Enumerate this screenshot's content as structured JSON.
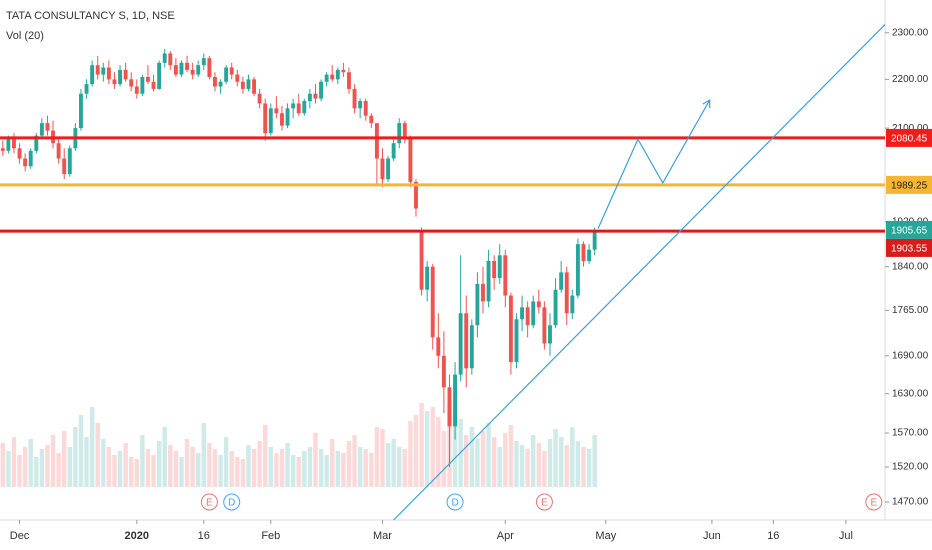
{
  "chart_data": {
    "type": "candlestick",
    "title": "TATA CONSULTANCY S, 1D, NSE",
    "subtitle": "Vol (20)",
    "log_scale": true,
    "grid": false,
    "up_color": "#26a69a",
    "down_color": "#ef5350",
    "xlim": [
      -0.5,
      158
    ],
    "ylim": [
      1445,
      2373
    ],
    "volume_lim": [
      0,
      10
    ],
    "xticks": [
      {
        "value": 3,
        "label": "Dec"
      },
      {
        "value": 24,
        "label": "2020"
      },
      {
        "value": 36,
        "label": "16"
      },
      {
        "value": 48,
        "label": "Feb"
      },
      {
        "value": 68,
        "label": "Mar"
      },
      {
        "value": 90,
        "label": "Apr"
      },
      {
        "value": 108,
        "label": "May"
      },
      {
        "value": 127,
        "label": "Jun"
      },
      {
        "value": 138,
        "label": "16"
      },
      {
        "value": 151,
        "label": "Jul"
      }
    ],
    "yticks": [
      {
        "value": 2300,
        "label": "2300.00"
      },
      {
        "value": 2200,
        "label": "2200.00"
      },
      {
        "value": 2100,
        "label": "2100.00"
      },
      {
        "value": 1920,
        "label": "1920.00"
      },
      {
        "value": 1840,
        "label": "1840.00"
      },
      {
        "value": 1765,
        "label": "1765.00"
      },
      {
        "value": 1690,
        "label": "1690.00"
      },
      {
        "value": 1630,
        "label": "1630.00"
      },
      {
        "value": 1570,
        "label": "1570.00"
      },
      {
        "value": 1520,
        "label": "1520.00"
      },
      {
        "value": 1470,
        "label": "1470.00"
      }
    ],
    "ohlc": [
      [
        2060,
        2075,
        2045,
        2055
      ],
      [
        2055,
        2085,
        2050,
        2080
      ],
      [
        2080,
        2090,
        2050,
        2060
      ],
      [
        2060,
        2070,
        2030,
        2040
      ],
      [
        2040,
        2050,
        2015,
        2025
      ],
      [
        2025,
        2060,
        2020,
        2055
      ],
      [
        2055,
        2090,
        2050,
        2085
      ],
      [
        2085,
        2120,
        2080,
        2110
      ],
      [
        2110,
        2125,
        2085,
        2095
      ],
      [
        2095,
        2115,
        2060,
        2070
      ],
      [
        2070,
        2080,
        2030,
        2040
      ],
      [
        2040,
        2060,
        2000,
        2010
      ],
      [
        2010,
        2065,
        2005,
        2060
      ],
      [
        2060,
        2110,
        2055,
        2100
      ],
      [
        2100,
        2180,
        2095,
        2170
      ],
      [
        2170,
        2200,
        2160,
        2190
      ],
      [
        2190,
        2240,
        2185,
        2230
      ],
      [
        2230,
        2250,
        2200,
        2210
      ],
      [
        2210,
        2235,
        2195,
        2225
      ],
      [
        2225,
        2240,
        2190,
        2200
      ],
      [
        2200,
        2215,
        2180,
        2190
      ],
      [
        2190,
        2230,
        2185,
        2220
      ],
      [
        2220,
        2235,
        2195,
        2200
      ],
      [
        2200,
        2215,
        2175,
        2185
      ],
      [
        2185,
        2200,
        2160,
        2170
      ],
      [
        2170,
        2210,
        2165,
        2205
      ],
      [
        2205,
        2230,
        2190,
        2195
      ],
      [
        2195,
        2210,
        2175,
        2180
      ],
      [
        2180,
        2240,
        2178,
        2235
      ],
      [
        2235,
        2265,
        2225,
        2255
      ],
      [
        2255,
        2260,
        2220,
        2230
      ],
      [
        2230,
        2245,
        2205,
        2210
      ],
      [
        2210,
        2240,
        2205,
        2235
      ],
      [
        2235,
        2250,
        2215,
        2220
      ],
      [
        2220,
        2235,
        2200,
        2210
      ],
      [
        2210,
        2240,
        2205,
        2230
      ],
      [
        2230,
        2255,
        2220,
        2245
      ],
      [
        2245,
        2250,
        2200,
        2205
      ],
      [
        2205,
        2215,
        2175,
        2185
      ],
      [
        2185,
        2200,
        2170,
        2195
      ],
      [
        2195,
        2230,
        2190,
        2225
      ],
      [
        2225,
        2235,
        2200,
        2210
      ],
      [
        2210,
        2220,
        2185,
        2195
      ],
      [
        2195,
        2205,
        2170,
        2180
      ],
      [
        2180,
        2210,
        2175,
        2200
      ],
      [
        2200,
        2205,
        2165,
        2170
      ],
      [
        2170,
        2180,
        2140,
        2150
      ],
      [
        2150,
        2160,
        2075,
        2090
      ],
      [
        2090,
        2150,
        2085,
        2140
      ],
      [
        2140,
        2165,
        2120,
        2130
      ],
      [
        2130,
        2145,
        2095,
        2105
      ],
      [
        2105,
        2150,
        2100,
        2140
      ],
      [
        2140,
        2160,
        2120,
        2150
      ],
      [
        2150,
        2170,
        2125,
        2130
      ],
      [
        2130,
        2160,
        2125,
        2155
      ],
      [
        2155,
        2180,
        2140,
        2170
      ],
      [
        2170,
        2190,
        2150,
        2160
      ],
      [
        2160,
        2200,
        2155,
        2195
      ],
      [
        2195,
        2215,
        2185,
        2210
      ],
      [
        2210,
        2230,
        2195,
        2200
      ],
      [
        2200,
        2225,
        2190,
        2220
      ],
      [
        2220,
        2235,
        2205,
        2215
      ],
      [
        2215,
        2225,
        2170,
        2180
      ],
      [
        2180,
        2190,
        2130,
        2140
      ],
      [
        2140,
        2160,
        2120,
        2155
      ],
      [
        2155,
        2160,
        2115,
        2125
      ],
      [
        2125,
        2130,
        2100,
        2110
      ],
      [
        2110,
        2110,
        1990,
        2040
      ],
      [
        2040,
        2060,
        1985,
        2000
      ],
      [
        2000,
        2045,
        1995,
        2040
      ],
      [
        2040,
        2080,
        2035,
        2070
      ],
      [
        2070,
        2120,
        2060,
        2110
      ],
      [
        2110,
        2115,
        2070,
        2080
      ],
      [
        2080,
        2085,
        1985,
        1995
      ],
      [
        1995,
        2000,
        1930,
        1945
      ],
      [
        1905,
        1910,
        1790,
        1800
      ],
      [
        1800,
        1850,
        1780,
        1840
      ],
      [
        1840,
        1845,
        1700,
        1720
      ],
      [
        1720,
        1760,
        1670,
        1690
      ],
      [
        1690,
        1730,
        1600,
        1640
      ],
      [
        1640,
        1660,
        1520,
        1580
      ],
      [
        1580,
        1680,
        1560,
        1660
      ],
      [
        1660,
        1860,
        1650,
        1760
      ],
      [
        1760,
        1790,
        1640,
        1670
      ],
      [
        1670,
        1750,
        1660,
        1740
      ],
      [
        1740,
        1830,
        1720,
        1810
      ],
      [
        1810,
        1840,
        1760,
        1780
      ],
      [
        1780,
        1870,
        1770,
        1850
      ],
      [
        1850,
        1860,
        1800,
        1820
      ],
      [
        1820,
        1880,
        1810,
        1860
      ],
      [
        1860,
        1870,
        1770,
        1790
      ],
      [
        1790,
        1795,
        1660,
        1680
      ],
      [
        1680,
        1760,
        1670,
        1750
      ],
      [
        1750,
        1790,
        1730,
        1770
      ],
      [
        1770,
        1780,
        1720,
        1740
      ],
      [
        1740,
        1790,
        1735,
        1780
      ],
      [
        1780,
        1800,
        1760,
        1770
      ],
      [
        1770,
        1780,
        1700,
        1710
      ],
      [
        1710,
        1760,
        1690,
        1740
      ],
      [
        1740,
        1820,
        1735,
        1800
      ],
      [
        1800,
        1850,
        1795,
        1830
      ],
      [
        1830,
        1840,
        1740,
        1760
      ],
      [
        1760,
        1800,
        1750,
        1790
      ],
      [
        1790,
        1890,
        1785,
        1880
      ],
      [
        1880,
        1885,
        1840,
        1850
      ],
      [
        1850,
        1880,
        1845,
        1870
      ],
      [
        1870,
        1910,
        1860,
        1905.65
      ]
    ],
    "volume": [
      2.2,
      1.8,
      2.5,
      1.6,
      2.0,
      2.4,
      1.5,
      1.9,
      2.1,
      2.6,
      1.7,
      2.8,
      2.0,
      3.0,
      3.6,
      2.5,
      4.0,
      3.2,
      2.4,
      2.0,
      1.6,
      1.8,
      2.2,
      1.5,
      1.4,
      2.6,
      1.9,
      1.6,
      2.3,
      3.0,
      2.1,
      1.8,
      1.5,
      2.4,
      2.0,
      1.7,
      3.2,
      2.2,
      1.9,
      1.6,
      2.5,
      1.8,
      1.5,
      1.4,
      2.1,
      1.9,
      2.3,
      3.1,
      2.0,
      1.7,
      1.9,
      2.2,
      1.6,
      1.5,
      1.8,
      2.0,
      2.7,
      1.9,
      1.6,
      2.4,
      1.8,
      1.7,
      2.3,
      2.6,
      2.0,
      1.9,
      1.7,
      3.0,
      2.9,
      2.2,
      2.4,
      2.0,
      1.9,
      3.3,
      3.6,
      4.2,
      3.8,
      4.0,
      3.5,
      2.8,
      4.1,
      3.9,
      3.4,
      2.6,
      3.0,
      2.4,
      2.8,
      3.2,
      2.5,
      2.0,
      2.7,
      3.1,
      2.3,
      2.1,
      1.9,
      2.6,
      2.2,
      1.8,
      2.4,
      2.9,
      2.5,
      2.1,
      3.0,
      2.3,
      2.0,
      1.9,
      2.6
    ],
    "levels": [
      {
        "value": 2080.45,
        "color": "#f21c1c",
        "text_color": "#ffffff"
      },
      {
        "value": 1989.25,
        "color": "#f7b631",
        "text_color": "#222222"
      },
      {
        "value": 1903.55,
        "color": "#d81c1c",
        "text_color": "#ffffff"
      }
    ],
    "drawings": [
      {
        "color": "#3ba0dc",
        "arrow": false,
        "points": [
          [
            70,
            1445
          ],
          [
            158,
            2318
          ]
        ]
      },
      {
        "color": "#3ba0dc",
        "arrow": true,
        "points": [
          [
            106.6,
            1908
          ],
          [
            113.75,
            2078
          ],
          [
            118.2,
            1993
          ],
          [
            126.6,
            2157
          ]
        ]
      }
    ],
    "events": [
      {
        "x": 37,
        "label": "E",
        "color": "#e57373"
      },
      {
        "x": 41,
        "label": "D",
        "color": "#42a5f5"
      },
      {
        "x": 81,
        "label": "D",
        "color": "#42a5f5"
      },
      {
        "x": 97,
        "label": "E",
        "color": "#e57373"
      },
      {
        "x": 156,
        "label": "E",
        "color": "#e57373"
      }
    ]
  }
}
